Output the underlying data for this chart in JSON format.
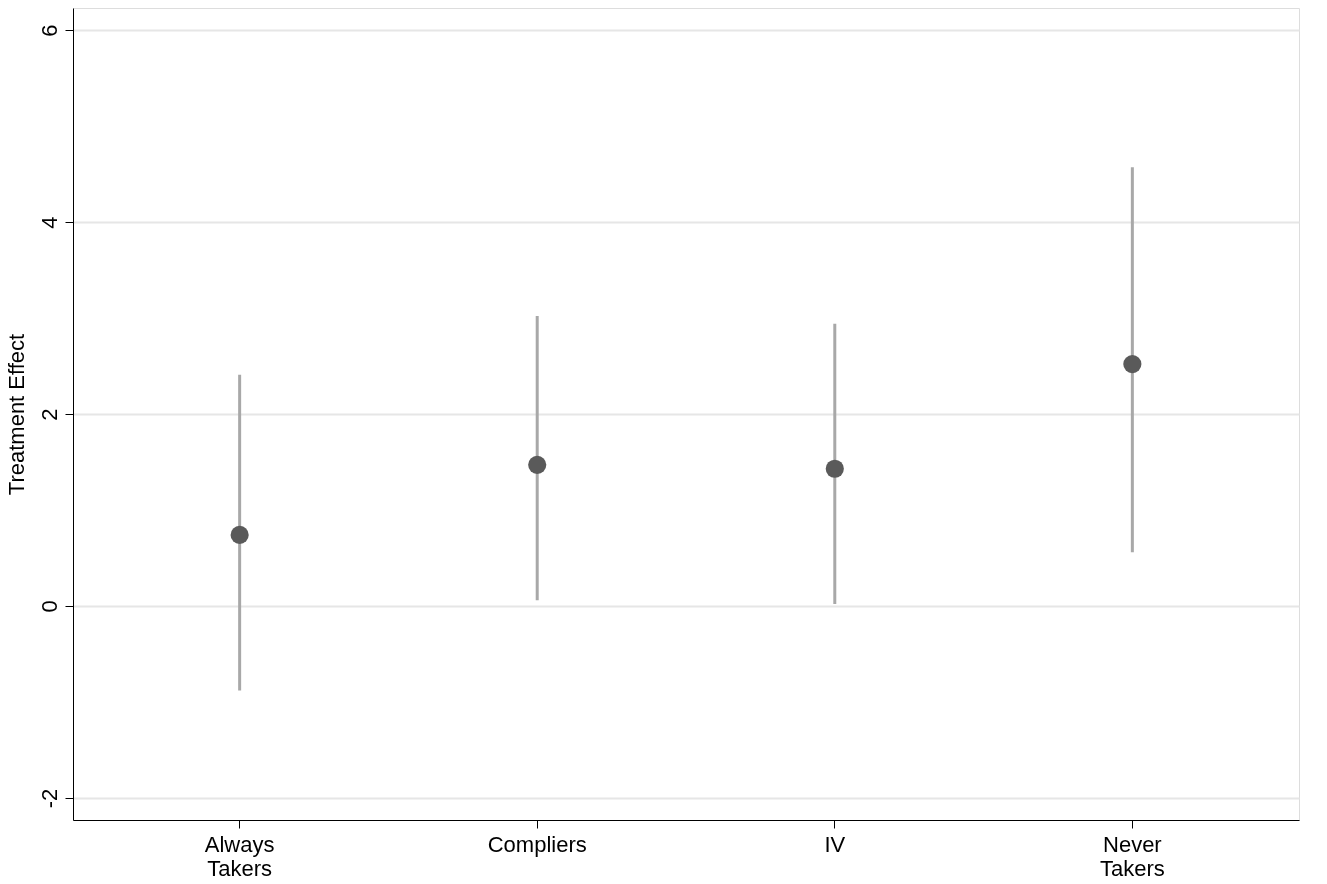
{
  "chart_data": {
    "type": "scatter",
    "ylabel": "Treatment Effect",
    "categories": [
      "Always Takers",
      "Compliers",
      "IV",
      "Never Takers"
    ],
    "series": [
      {
        "color": "#5a5a5a",
        "values": [
          0.74,
          1.47,
          1.43,
          2.52
        ],
        "errors": [
          [
            -0.88,
            2.41
          ],
          [
            0.06,
            3.02
          ],
          [
            0.02,
            2.94
          ],
          [
            0.56,
            4.57
          ]
        ]
      }
    ],
    "ylim": [
      -2.23,
      6.23
    ],
    "yticks": [
      -2,
      0,
      2,
      4,
      6
    ],
    "grid": "y",
    "marker": "circle",
    "legend": false
  }
}
